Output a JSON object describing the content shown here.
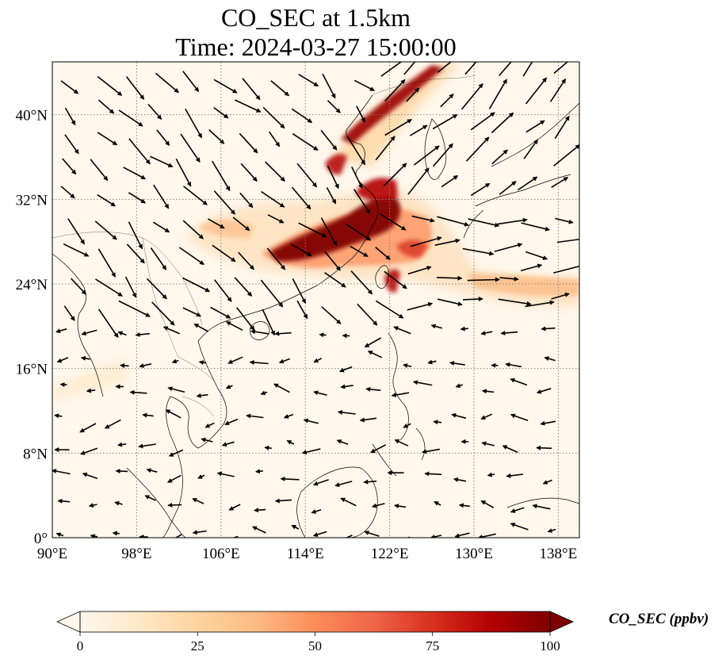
{
  "title": {
    "line1": "CO_SEC at 1.5km",
    "line2": "Time: 2024-03-27 15:00:00"
  },
  "map": {
    "lon_range": [
      90,
      140
    ],
    "lat_range": [
      0,
      45
    ],
    "lon_ticks": [
      "90°E",
      "98°E",
      "106°E",
      "114°E",
      "122°E",
      "130°E",
      "138°E"
    ],
    "lon_tick_values": [
      90,
      98,
      106,
      114,
      122,
      130,
      138
    ],
    "lat_ticks": [
      "0°",
      "8°N",
      "16°N",
      "24°N",
      "32°N",
      "40°N"
    ],
    "lat_tick_values": [
      0,
      8,
      16,
      24,
      32,
      40
    ],
    "gridlines": true,
    "variable": "CO_SEC",
    "height": "1.5km",
    "colormap": "OrRd",
    "plume_color_max": "#7f0000",
    "background_color": "#fff7ec"
  },
  "colorbar": {
    "label": "CO_SEC (ppbv)",
    "min": 0,
    "max": 100,
    "ticks": [
      "0",
      "25",
      "50",
      "75",
      "100"
    ],
    "tick_values": [
      0,
      25,
      50,
      75,
      100
    ],
    "extend": "both",
    "colors": [
      "#fff7ec",
      "#fee8c8",
      "#fdd49e",
      "#fdbb84",
      "#fc8d59",
      "#ef6548",
      "#d7301f",
      "#b30000",
      "#7f0000"
    ]
  }
}
